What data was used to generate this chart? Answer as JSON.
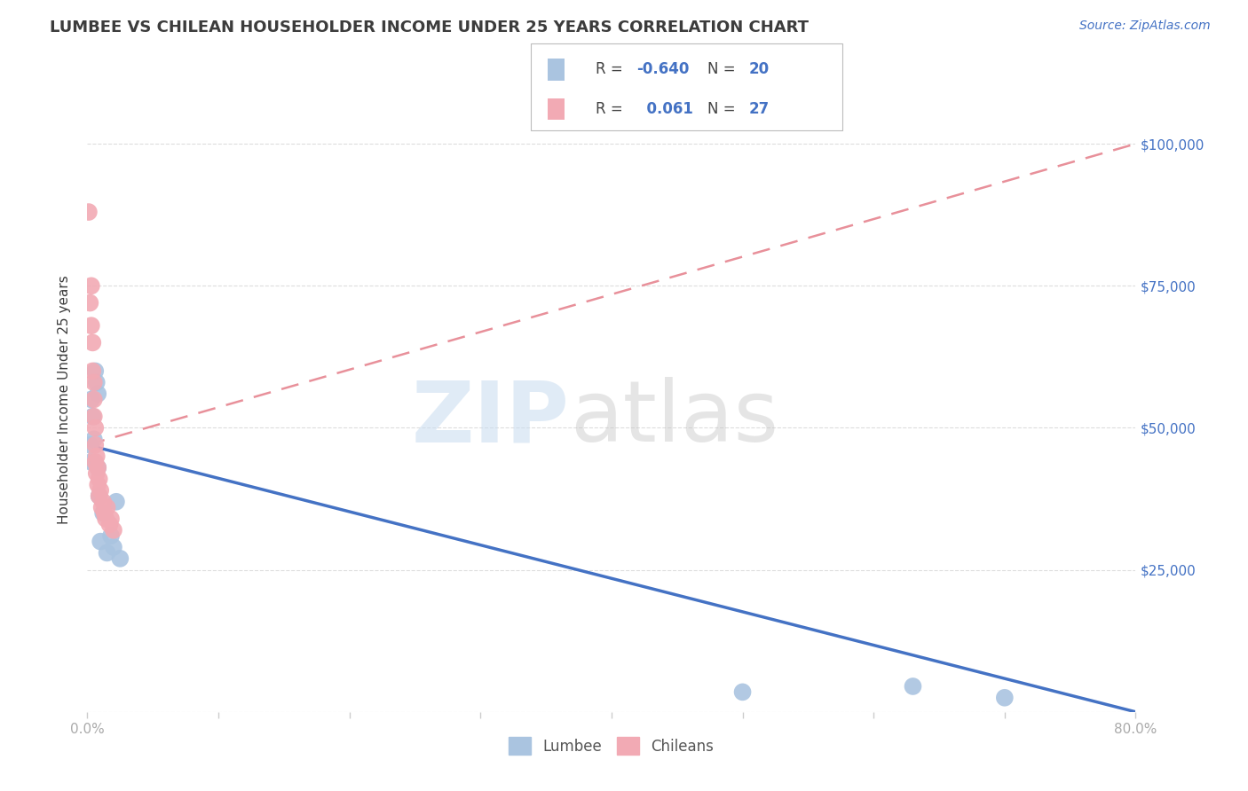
{
  "title": "LUMBEE VS CHILEAN HOUSEHOLDER INCOME UNDER 25 YEARS CORRELATION CHART",
  "source": "Source: ZipAtlas.com",
  "ylabel": "Householder Income Under 25 years",
  "xlim": [
    0.0,
    0.8
  ],
  "ylim": [
    0,
    110000
  ],
  "xticks": [
    0.0,
    0.1,
    0.2,
    0.3,
    0.4,
    0.5,
    0.6,
    0.7,
    0.8
  ],
  "xticklabels": [
    "0.0%",
    "",
    "",
    "",
    "",
    "",
    "",
    "",
    "80.0%"
  ],
  "yticks": [
    0,
    25000,
    50000,
    75000,
    100000
  ],
  "lumbee_color": "#aac4e0",
  "chilean_color": "#f2aab4",
  "lumbee_line_color": "#4472c4",
  "chilean_line_color": "#e8909a",
  "lumbee_R": "-0.640",
  "lumbee_N": "20",
  "chilean_R": "0.061",
  "chilean_N": "27",
  "background_color": "#ffffff",
  "grid_color": "#dddddd",
  "title_color": "#3c3c3c",
  "axis_label_color": "#3c3c3c",
  "tick_color": "#aaaaaa",
  "right_label_color": "#4472c4",
  "lumbee_x": [
    0.002,
    0.003,
    0.003,
    0.004,
    0.005,
    0.006,
    0.007,
    0.008,
    0.008,
    0.009,
    0.01,
    0.012,
    0.015,
    0.018,
    0.02,
    0.022,
    0.025,
    0.5,
    0.63,
    0.7
  ],
  "lumbee_y": [
    47000,
    44000,
    55000,
    52000,
    48000,
    60000,
    58000,
    43000,
    56000,
    38000,
    30000,
    35000,
    28000,
    31000,
    29000,
    37000,
    27000,
    3500,
    4500,
    2500
  ],
  "chilean_x": [
    0.001,
    0.002,
    0.003,
    0.003,
    0.004,
    0.004,
    0.005,
    0.005,
    0.005,
    0.006,
    0.006,
    0.006,
    0.007,
    0.007,
    0.008,
    0.008,
    0.009,
    0.009,
    0.01,
    0.011,
    0.012,
    0.013,
    0.014,
    0.015,
    0.017,
    0.018,
    0.02
  ],
  "chilean_y": [
    88000,
    72000,
    75000,
    68000,
    65000,
    60000,
    58000,
    55000,
    52000,
    50000,
    47000,
    44000,
    45000,
    42000,
    43000,
    40000,
    41000,
    38000,
    39000,
    36000,
    37000,
    35000,
    34000,
    36000,
    33000,
    34000,
    32000
  ],
  "trend_lumbee_x0": 0.0,
  "trend_lumbee_y0": 47000,
  "trend_lumbee_x1": 0.8,
  "trend_lumbee_y1": 0,
  "trend_chilean_x0": 0.0,
  "trend_chilean_y0": 47000,
  "trend_chilean_x1": 0.8,
  "trend_chilean_y1": 100000
}
